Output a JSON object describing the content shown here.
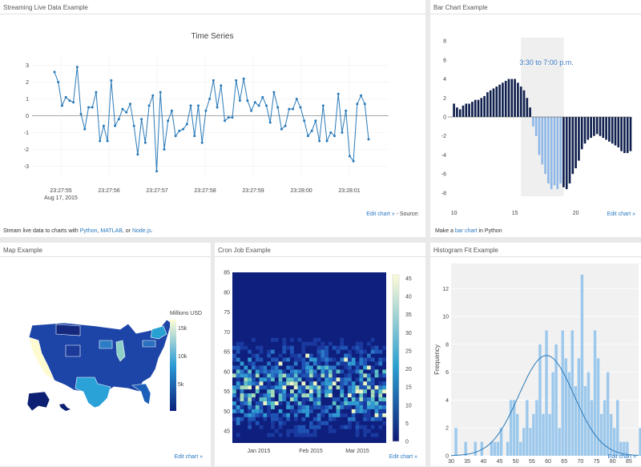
{
  "panels": {
    "streaming": {
      "title": "Streaming Live Data Example",
      "edit_label": "Edit chart »",
      "source_label": " - Source:",
      "footer_prefix": "Stream live data to charts with ",
      "footer_python": "Python",
      "footer_sep1": ", ",
      "footer_matlab": "MATLAB",
      "footer_sep2": ", or ",
      "footer_node": "Node.js",
      "footer_suffix": "."
    },
    "bar": {
      "title": "Bar Chart Example",
      "edit_label": "Edit chart »",
      "footer_prefix": "Make a ",
      "footer_link": "bar chart",
      "footer_suffix": " in Python"
    },
    "map": {
      "title": "Map Example",
      "edit_label": "Edit chart »"
    },
    "cron": {
      "title": "Cron Job Example",
      "edit_label": "Edit chart »"
    },
    "hist": {
      "title": "Histogram Fit Example",
      "edit_label": "Edit chart »"
    }
  },
  "chart_data": [
    {
      "id": "time-series",
      "type": "line",
      "title": "Time Series",
      "x_ticks": [
        "23:27:55",
        "23:27:56",
        "23:27:57",
        "23:27:58",
        "23:27:59",
        "23:28:00",
        "23:28:01"
      ],
      "x_date_label": "Aug 17, 2015",
      "y_ticks": [
        3,
        2,
        1,
        0,
        -1,
        -2,
        -3
      ],
      "ylim": [
        -3.5,
        3.5
      ],
      "grid": true,
      "color": "#2a7ab8",
      "y": [
        2.6,
        2.0,
        0.6,
        1.1,
        0.9,
        0.8,
        2.9,
        0.1,
        -0.8,
        0.5,
        0.5,
        1.4,
        -1.5,
        -0.6,
        -1.5,
        2.1,
        -0.6,
        -0.2,
        0.4,
        0.2,
        0.7,
        -0.6,
        -2.3,
        -0.2,
        -1.6,
        0.6,
        1.2,
        -3.3,
        1.4,
        -2.0,
        -0.3,
        0.3,
        -1.2,
        -0.9,
        -0.8,
        -0.5,
        0.6,
        -1.2,
        0.6,
        -1.6,
        0.3,
        1.0,
        2.1,
        0.5,
        1.8,
        -0.3,
        -0.1,
        -0.1,
        2.1,
        0.9,
        2.2,
        0.9,
        0.3,
        0.8,
        0.6,
        1.1,
        0.6,
        -0.4,
        1.4,
        0.5,
        -0.8,
        -0.6,
        0.4,
        0.4,
        1.0,
        0.5,
        -0.3,
        -1.2,
        -0.9,
        -0.3,
        -1.5,
        0.6,
        -1.5,
        -1.0,
        -1.2,
        1.3,
        -1.0,
        0.3,
        -2.4,
        -2.7,
        0.7,
        1.2,
        0.7,
        -1.4
      ]
    },
    {
      "id": "bar-chart",
      "type": "bar",
      "annotation": "3:30 to 7:00 p.m.",
      "x_ticks": [
        10,
        15,
        20
      ],
      "xlim": [
        9.5,
        24.5
      ],
      "y_ticks": [
        8,
        6,
        4,
        2,
        0,
        -2,
        -4,
        -6,
        -8
      ],
      "ylim": [
        -8.6,
        8.6
      ],
      "highlight_range": [
        15.5,
        19
      ],
      "x_start": 10,
      "x_step": 0.25,
      "color_pos": "#10204e",
      "color_neg_dark": "#10204e",
      "color_neg_light": "#8fb7e8",
      "values": [
        1.4,
        1.0,
        0.8,
        1.2,
        1.4,
        1.4,
        1.6,
        1.8,
        1.8,
        2.0,
        2.2,
        2.6,
        2.8,
        3.0,
        3.2,
        3.4,
        3.6,
        3.8,
        4.0,
        4.0,
        4.0,
        3.6,
        3.2,
        2.8,
        2.0,
        1.0,
        -1.0,
        -2.0,
        -4.0,
        -5.0,
        -6.0,
        -7.0,
        -7.6,
        -7.2,
        -7.6,
        -7.0,
        -7.4,
        -7.6,
        -7.0,
        -6.0,
        -5.4,
        -4.6,
        -3.4,
        -2.8,
        -2.4,
        -2.2,
        -2.0,
        -1.8,
        -2.0,
        -2.2,
        -2.4,
        -2.6,
        -2.8,
        -3.0,
        -3.2,
        -3.6,
        -3.8,
        -3.8,
        -3.6
      ]
    },
    {
      "id": "map-chart",
      "type": "heatmap",
      "colorbar_title": "Millions USD",
      "colorbar_ticks": [
        "15k",
        "10k",
        "5k"
      ],
      "colorscale": [
        "#fffdd6",
        "#2a9bd6",
        "#0b1f7e"
      ]
    },
    {
      "id": "cron-heatmap",
      "type": "heatmap",
      "x_ticks": [
        "Jan 2015",
        "Feb 2015",
        "Mar 2015"
      ],
      "y_ticks": [
        85,
        80,
        75,
        70,
        65,
        60,
        55,
        50,
        45
      ],
      "ylim": [
        42,
        85
      ],
      "colorbar_ticks": [
        45,
        40,
        35,
        30,
        25,
        20,
        15,
        10,
        5,
        0
      ],
      "colorscale": [
        "#0d1b76",
        "#2a9fd0",
        "#fffcd6"
      ]
    },
    {
      "id": "histogram-fit",
      "type": "bar",
      "ylabel": "Frequency",
      "x_ticks": [
        30,
        35,
        40,
        45,
        50,
        55,
        60,
        65,
        70,
        75,
        80,
        85
      ],
      "xlim": [
        30,
        88
      ],
      "y_ticks": [
        12,
        10,
        8,
        6,
        4,
        2,
        0
      ],
      "ylim": [
        0,
        13.8
      ],
      "bin_start": 30,
      "bin_width": 1,
      "bar_color": "#9cc8ec",
      "fit_color": "#2a7ab8",
      "fit_mean": 59.5,
      "fit_sd": 8.5,
      "fit_peak": 7.2,
      "counts": [
        0,
        2,
        0,
        0,
        1,
        0,
        0,
        1,
        0,
        1,
        0,
        0,
        1,
        1,
        1,
        2,
        0,
        1,
        4,
        4,
        3,
        1,
        2,
        4,
        2,
        3,
        4,
        8,
        3,
        9,
        3,
        6,
        8,
        2,
        9,
        7,
        6,
        9,
        5,
        7,
        13,
        5,
        6,
        4,
        9,
        7,
        3,
        4,
        6,
        3,
        2,
        4,
        1,
        1,
        1,
        0,
        0,
        0,
        2,
        1
      ]
    }
  ]
}
